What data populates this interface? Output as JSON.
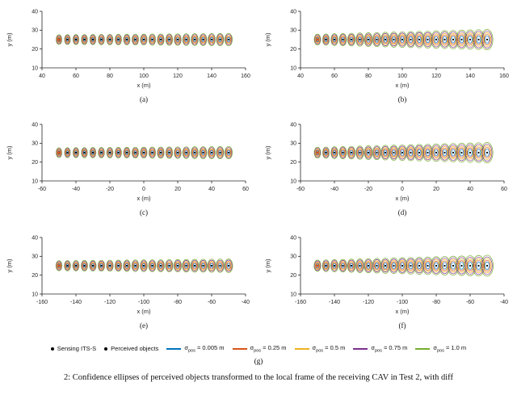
{
  "caption": "2: Confidence ellipses of perceived objects transformed to the local frame of the receiving CAV in Test 2, with diff",
  "style": {
    "axis_color": "#262626",
    "marker_color": "#000000",
    "sensor_color": "#D95319",
    "background": "#ffffff"
  },
  "legend": {
    "label": "(g)",
    "items": [
      {
        "type": "dot",
        "color": "#000000",
        "label": "Sensing ITS-S"
      },
      {
        "type": "dot",
        "color": "#000000",
        "label": "Perceived objects"
      },
      {
        "type": "line",
        "color": "#0072BD",
        "symbol": "σ",
        "sub": "pos",
        "label": " = 0.005 m"
      },
      {
        "type": "line",
        "color": "#D95319",
        "symbol": "σ",
        "sub": "pos",
        "label": " = 0.25 m"
      },
      {
        "type": "line",
        "color": "#EDB120",
        "symbol": "σ",
        "sub": "pos",
        "label": " = 0.5 m"
      },
      {
        "type": "line",
        "color": "#7E2F8E",
        "symbol": "σ",
        "sub": "pos",
        "label": " = 0.75 m"
      },
      {
        "type": "line",
        "color": "#77AC30",
        "symbol": "σ",
        "sub": "pos",
        "label": " = 1.0 m"
      }
    ]
  },
  "chart_data": {
    "type": "scatter",
    "description": "Confidence ellipses around perceived objects placed every 5 m along a line at y = 25 m; sensing ITS-S at the leftmost position; one ellipse per position standard deviation level",
    "sigmas": [
      {
        "sigma": "0.005",
        "color": "#0072BD"
      },
      {
        "sigma": "0.25",
        "color": "#D95319"
      },
      {
        "sigma": "0.5",
        "color": "#EDB120"
      },
      {
        "sigma": "0.75",
        "color": "#7E2F8E"
      },
      {
        "sigma": "1.0",
        "color": "#77AC30"
      }
    ],
    "subplots": [
      {
        "label": "(a)",
        "xlabel": "x (m)",
        "ylabel": "y (m)",
        "xlim": [
          40,
          160
        ],
        "ylim": [
          10,
          40
        ],
        "xticks": [
          40,
          60,
          80,
          100,
          120,
          140,
          160
        ],
        "yticks": [
          10,
          20,
          30,
          40
        ],
        "objects": {
          "x_start": 50,
          "x_end": 150,
          "step": 5,
          "count": 21,
          "y": 25,
          "sensor_index": 0
        },
        "ellipse_rx": [
          1.7,
          2.2
        ],
        "ellipse_ry": [
          2.6,
          3.3
        ]
      },
      {
        "label": "(b)",
        "xlabel": "x (m)",
        "ylabel": "y (m)",
        "xlim": [
          40,
          160
        ],
        "ylim": [
          10,
          40
        ],
        "xticks": [
          40,
          60,
          80,
          100,
          120,
          140,
          160
        ],
        "yticks": [
          10,
          20,
          30,
          40
        ],
        "objects": {
          "x_start": 50,
          "x_end": 150,
          "step": 5,
          "count": 21,
          "y": 25,
          "sensor_index": 0
        },
        "ellipse_rx": [
          1.9,
          3.4
        ],
        "ellipse_ry": [
          2.9,
          5.4
        ]
      },
      {
        "label": "(c)",
        "xlabel": "x (m)",
        "ylabel": "y (m)",
        "xlim": [
          -60,
          60
        ],
        "ylim": [
          10,
          40
        ],
        "xticks": [
          -60,
          -40,
          -20,
          0,
          20,
          40,
          60
        ],
        "yticks": [
          10,
          20,
          30,
          40
        ],
        "objects": {
          "x_start": -50,
          "x_end": 50,
          "step": 5,
          "count": 21,
          "y": 25,
          "sensor_index": 0
        },
        "ellipse_rx": [
          1.7,
          2.2
        ],
        "ellipse_ry": [
          2.6,
          3.3
        ]
      },
      {
        "label": "(d)",
        "xlabel": "x (m)",
        "ylabel": "y (m)",
        "xlim": [
          -60,
          60
        ],
        "ylim": [
          10,
          40
        ],
        "xticks": [
          -60,
          -40,
          -20,
          0,
          20,
          40,
          60
        ],
        "yticks": [
          10,
          20,
          30,
          40
        ],
        "objects": {
          "x_start": -50,
          "x_end": 50,
          "step": 5,
          "count": 21,
          "y": 25,
          "sensor_index": 0
        },
        "ellipse_rx": [
          1.9,
          3.4
        ],
        "ellipse_ry": [
          2.9,
          5.4
        ]
      },
      {
        "label": "(e)",
        "xlabel": "x (m)",
        "ylabel": "y (m)",
        "xlim": [
          -160,
          -40
        ],
        "ylim": [
          10,
          40
        ],
        "xticks": [
          -160,
          -140,
          -120,
          -100,
          -80,
          -60,
          -40
        ],
        "yticks": [
          10,
          20,
          30,
          40
        ],
        "objects": {
          "x_start": -150,
          "x_end": -50,
          "step": 5,
          "count": 21,
          "y": 25,
          "sensor_index": 0
        },
        "ellipse_rx": [
          1.8,
          2.4
        ],
        "ellipse_ry": [
          2.7,
          3.6
        ]
      },
      {
        "label": "(f)",
        "xlabel": "x (m)",
        "ylabel": "y (m)",
        "xlim": [
          -160,
          -40
        ],
        "ylim": [
          10,
          40
        ],
        "xticks": [
          -160,
          -140,
          -120,
          -100,
          -80,
          -60,
          -40
        ],
        "yticks": [
          10,
          20,
          30,
          40
        ],
        "objects": {
          "x_start": -150,
          "x_end": -50,
          "step": 5,
          "count": 21,
          "y": 25,
          "sensor_index": 0
        },
        "ellipse_rx": [
          2.0,
          3.6
        ],
        "ellipse_ry": [
          3.0,
          5.6
        ]
      }
    ]
  }
}
